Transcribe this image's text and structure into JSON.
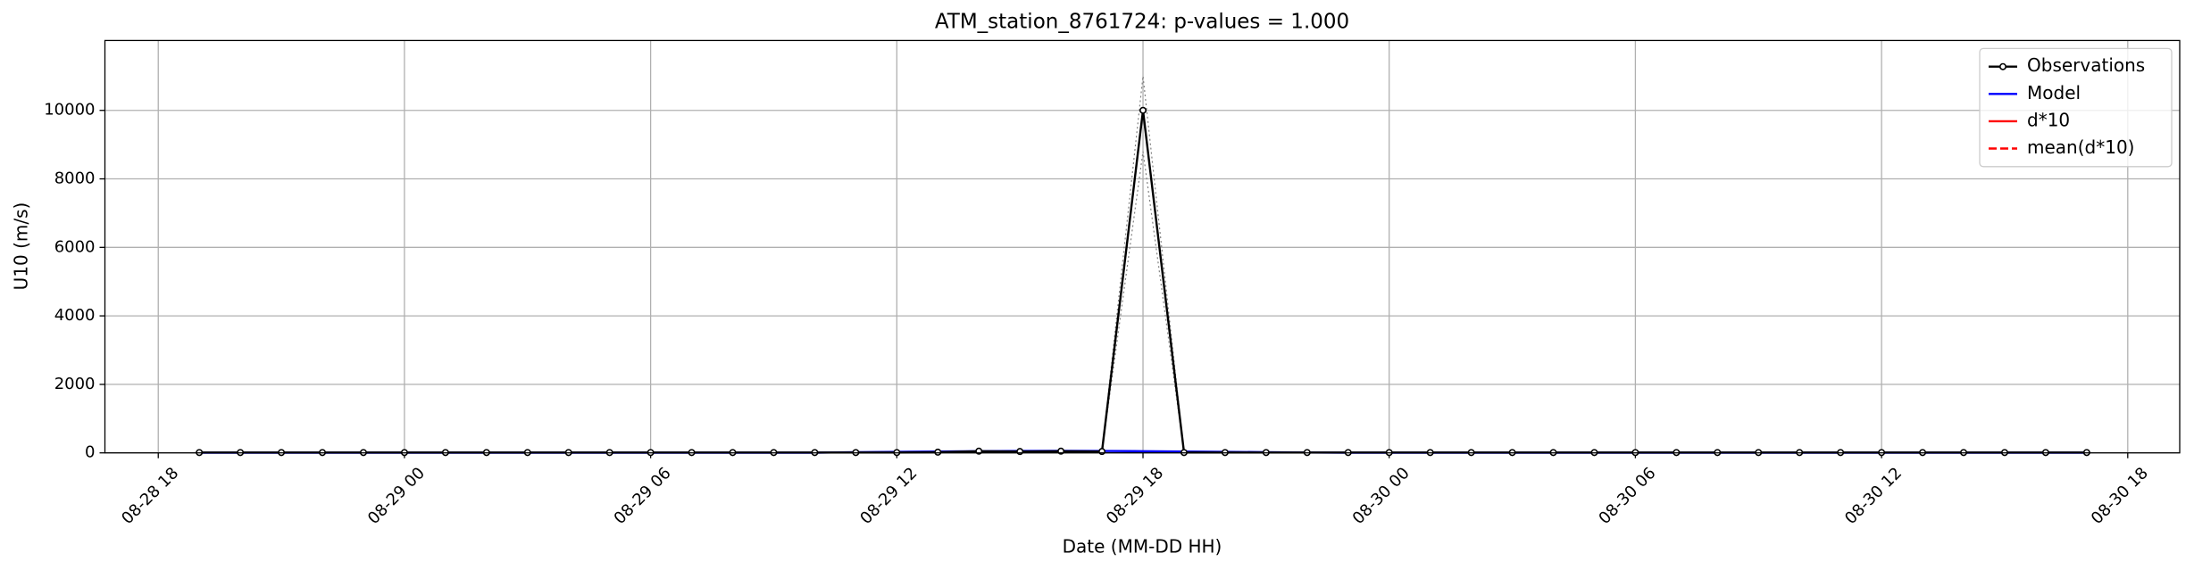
{
  "chart_data": {
    "type": "line",
    "title": "ATM_station_8761724: p-values = 1.000",
    "xlabel": "Date (MM-DD HH)",
    "ylabel": "U10 (m/s)",
    "x": [
      "08-28 19",
      "08-28 20",
      "08-28 21",
      "08-28 22",
      "08-28 23",
      "08-29 00",
      "08-29 01",
      "08-29 02",
      "08-29 03",
      "08-29 04",
      "08-29 05",
      "08-29 06",
      "08-29 07",
      "08-29 08",
      "08-29 09",
      "08-29 10",
      "08-29 11",
      "08-29 12",
      "08-29 13",
      "08-29 14",
      "08-29 15",
      "08-29 16",
      "08-29 17",
      "08-29 18",
      "08-29 19",
      "08-29 20",
      "08-29 21",
      "08-29 22",
      "08-29 23",
      "08-30 00",
      "08-30 01",
      "08-30 02",
      "08-30 03",
      "08-30 04",
      "08-30 05",
      "08-30 06",
      "08-30 07",
      "08-30 08",
      "08-30 09",
      "08-30 10",
      "08-30 11",
      "08-30 12",
      "08-30 13",
      "08-30 14",
      "08-30 15",
      "08-30 16",
      "08-30 17"
    ],
    "series": [
      {
        "color": "#808080",
        "style": "dotted",
        "values": [
          10,
          10,
          10,
          10,
          10,
          10,
          10,
          10,
          10,
          10,
          10,
          10,
          10,
          10,
          10,
          10,
          10,
          10,
          20,
          50,
          40,
          50,
          40,
          11000,
          10,
          10,
          10,
          10,
          10,
          10,
          10,
          10,
          10,
          10,
          10,
          10,
          10,
          10,
          10,
          10,
          10,
          10,
          10,
          10,
          10,
          10,
          10
        ]
      },
      {
        "color": "#808080",
        "style": "dotted",
        "values": [
          10,
          10,
          10,
          10,
          10,
          10,
          10,
          10,
          10,
          10,
          10,
          10,
          10,
          10,
          10,
          10,
          10,
          10,
          20,
          50,
          40,
          50,
          40,
          8800,
          10,
          10,
          10,
          10,
          10,
          10,
          10,
          10,
          10,
          10,
          10,
          10,
          10,
          10,
          10,
          10,
          10,
          10,
          10,
          10,
          10,
          10,
          10
        ]
      },
      {
        "name": "Model",
        "color": "#0000ff",
        "style": "solid",
        "values": [
          5,
          5,
          5,
          5,
          5,
          5,
          5,
          5,
          5,
          5,
          5,
          5,
          5,
          5,
          5,
          5,
          20,
          30,
          40,
          50,
          55,
          60,
          55,
          50,
          40,
          30,
          20,
          10,
          5,
          5,
          5,
          5,
          5,
          5,
          5,
          5,
          5,
          5,
          5,
          5,
          5,
          5,
          5,
          5,
          5,
          5,
          5
        ]
      },
      {
        "name": "d*10",
        "color": "#ff0000",
        "style": "solid",
        "values": [
          null,
          null,
          null,
          null,
          null,
          null,
          null,
          null,
          null,
          null,
          null,
          null,
          null,
          null,
          null,
          null,
          null,
          null,
          null,
          null,
          null,
          null,
          null,
          null,
          null,
          null,
          null,
          null,
          null,
          null,
          null,
          null,
          null,
          null,
          null,
          null,
          null,
          null,
          null,
          null,
          null,
          null,
          null,
          null,
          null,
          null,
          null
        ]
      },
      {
        "name": "mean(d*10)",
        "color": "#ff0000",
        "style": "dashed",
        "values": [
          null,
          null,
          null,
          null,
          null,
          null,
          null,
          null,
          null,
          null,
          null,
          null,
          null,
          null,
          null,
          null,
          null,
          null,
          null,
          null,
          null,
          null,
          null,
          null,
          null,
          null,
          null,
          null,
          null,
          null,
          null,
          null,
          null,
          null,
          null,
          null,
          null,
          null,
          null,
          null,
          null,
          null,
          null,
          null,
          null,
          null,
          null
        ]
      },
      {
        "name": "Observations",
        "color": "#000000",
        "style": "solid",
        "marker": "circle",
        "values": [
          10,
          10,
          10,
          10,
          10,
          10,
          10,
          10,
          10,
          10,
          10,
          10,
          10,
          10,
          10,
          10,
          10,
          10,
          20,
          50,
          40,
          50,
          40,
          10000,
          10,
          10,
          10,
          10,
          10,
          10,
          10,
          10,
          10,
          10,
          10,
          10,
          10,
          10,
          10,
          10,
          10,
          10,
          10,
          10,
          10,
          10,
          10
        ]
      }
    ],
    "legend_order": [
      5,
      2,
      3,
      4
    ],
    "xlim": [
      "08-28 16:42",
      "08-30 19:16"
    ],
    "xticks": [
      "08-28 18",
      "08-29 00",
      "08-29 06",
      "08-29 12",
      "08-29 18",
      "08-30 00",
      "08-30 06",
      "08-30 12",
      "08-30 18"
    ],
    "ylim": [
      0,
      12040
    ],
    "yticks": [
      0,
      2000,
      4000,
      6000,
      8000,
      10000
    ],
    "grid": true,
    "legend": "upper right"
  }
}
